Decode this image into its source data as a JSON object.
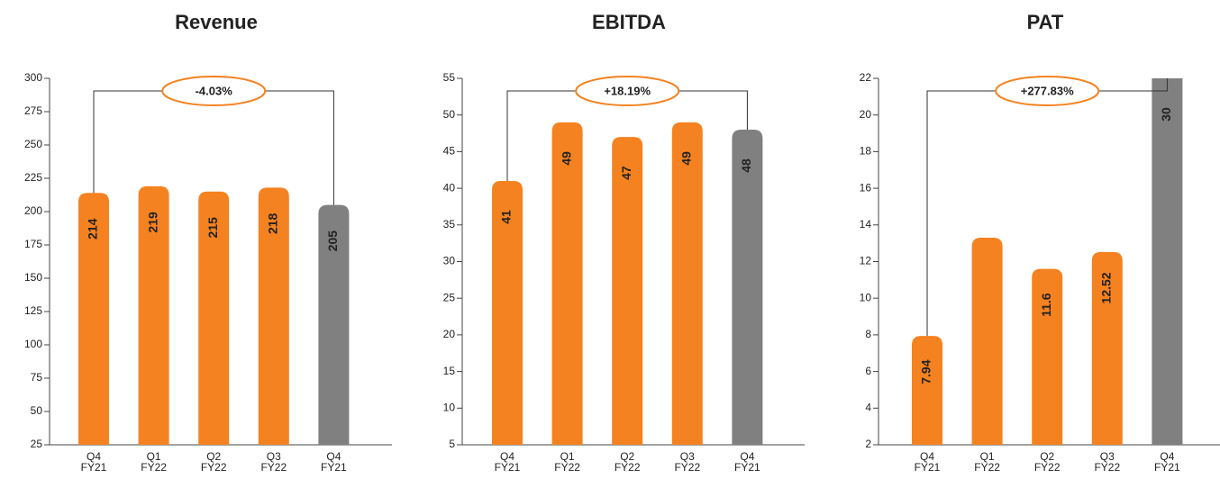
{
  "chart_data": [
    {
      "type": "bar",
      "title": "Revenue",
      "categories": [
        "Q4 FY21",
        "Q1 FY22",
        "Q2 FY22",
        "Q3 FY22",
        "Q4 FY21"
      ],
      "values": [
        214,
        219,
        215,
        218,
        205
      ],
      "colors": [
        "#f58220",
        "#f58220",
        "#f58220",
        "#f58220",
        "#808080"
      ],
      "ylim": [
        25,
        300
      ],
      "yticks": [
        25,
        50,
        75,
        100,
        125,
        150,
        175,
        200,
        225,
        250,
        275,
        300
      ],
      "annotation": "-4.03%"
    },
    {
      "type": "bar",
      "title": "EBITDA",
      "categories": [
        "Q4 FY21",
        "Q1 FY22",
        "Q2 FY22",
        "Q3 FY22",
        "Q4 FY21"
      ],
      "values": [
        41,
        49,
        47,
        49,
        48
      ],
      "colors": [
        "#f58220",
        "#f58220",
        "#f58220",
        "#f58220",
        "#808080"
      ],
      "ylim": [
        5,
        55
      ],
      "yticks": [
        5,
        10,
        15,
        20,
        25,
        30,
        35,
        40,
        45,
        50,
        55
      ],
      "annotation": "+18.19%"
    },
    {
      "type": "bar",
      "title": "PAT",
      "categories": [
        "Q4 FY21",
        "Q1 FY22",
        "Q2 FY22",
        "Q3 FY22",
        "Q4 FY21"
      ],
      "values": [
        7.94,
        13.3,
        11.6,
        12.52,
        30
      ],
      "value_labels": [
        "7.94",
        null,
        "11.6",
        "12.52",
        "30"
      ],
      "colors": [
        "#f58220",
        "#f58220",
        "#f58220",
        "#f58220",
        "#808080"
      ],
      "ylim": [
        2,
        22
      ],
      "yticks": [
        2,
        4,
        6,
        8,
        10,
        12,
        14,
        16,
        18,
        20,
        22
      ],
      "annotation": "+277.83%"
    }
  ]
}
